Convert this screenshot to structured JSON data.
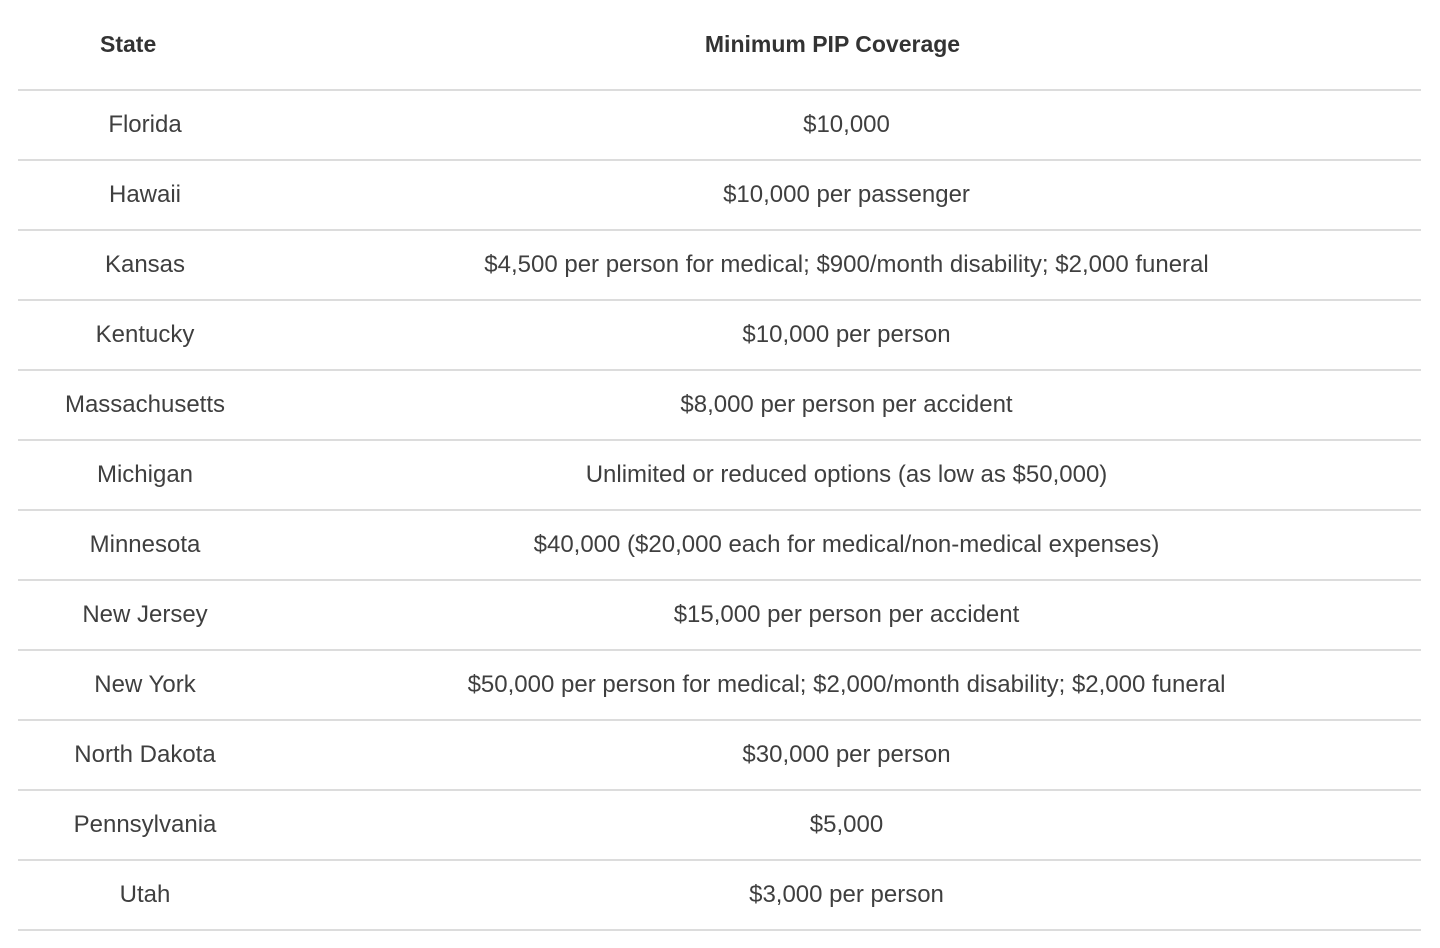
{
  "table": {
    "headers": [
      "State",
      "Minimum PIP Coverage"
    ],
    "rows": [
      [
        "Florida",
        "$10,000"
      ],
      [
        "Hawaii",
        "$10,000 per passenger"
      ],
      [
        "Kansas",
        "$4,500 per person for medical; $900/month disability; $2,000 funeral"
      ],
      [
        "Kentucky",
        "$10,000 per person"
      ],
      [
        "Massachusetts",
        "$8,000 per person per accident"
      ],
      [
        "Michigan",
        "Unlimited or reduced options (as low as $50,000)"
      ],
      [
        "Minnesota",
        "$40,000 ($20,000 each for medical/non-medical expenses)"
      ],
      [
        "New Jersey",
        "$15,000 per person per accident"
      ],
      [
        "New York",
        "$50,000 per person for medical; $2,000/month disability; $2,000 funeral"
      ],
      [
        "North Dakota",
        "$30,000 per person"
      ],
      [
        "Pennsylvania",
        "$5,000"
      ],
      [
        "Utah",
        "$3,000 per person"
      ]
    ]
  }
}
